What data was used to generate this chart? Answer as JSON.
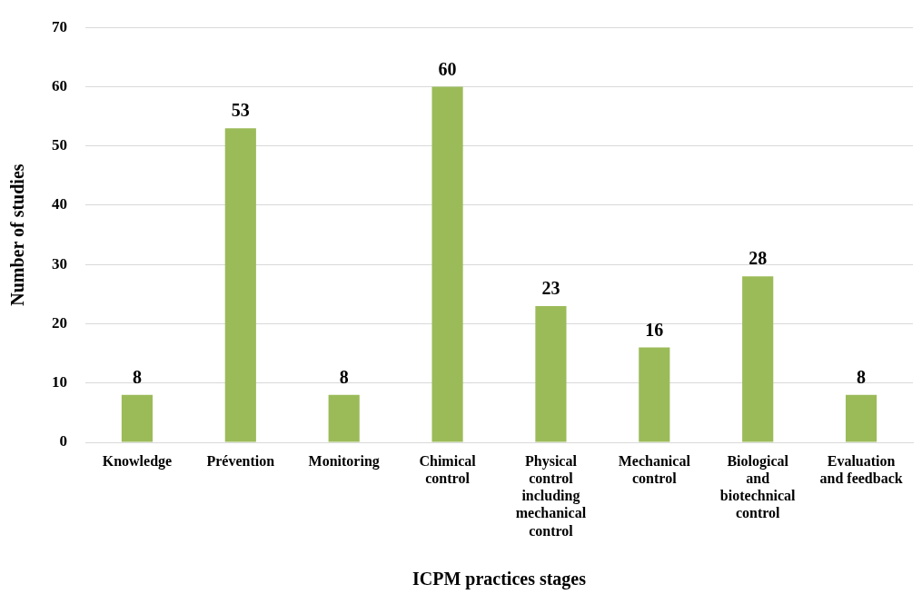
{
  "chart_data": {
    "type": "bar",
    "xlabel": "ICPM practices stages",
    "ylabel": "Number of studies",
    "categories": [
      "Knowledge",
      "Prévention",
      "Monitoring",
      "Chimical control",
      "Physical control including mechanical control",
      "Mechanical control",
      "Biological and biotechnical control",
      "Evaluation and feedback"
    ],
    "values": [
      8,
      53,
      8,
      60,
      23,
      16,
      28,
      8
    ],
    "color": "#9bbb59",
    "ylim": [
      0,
      70
    ],
    "yticks": [
      0,
      10,
      20,
      30,
      40,
      50,
      60,
      70
    ],
    "grid": "y",
    "data_labels": true,
    "legend": false
  }
}
